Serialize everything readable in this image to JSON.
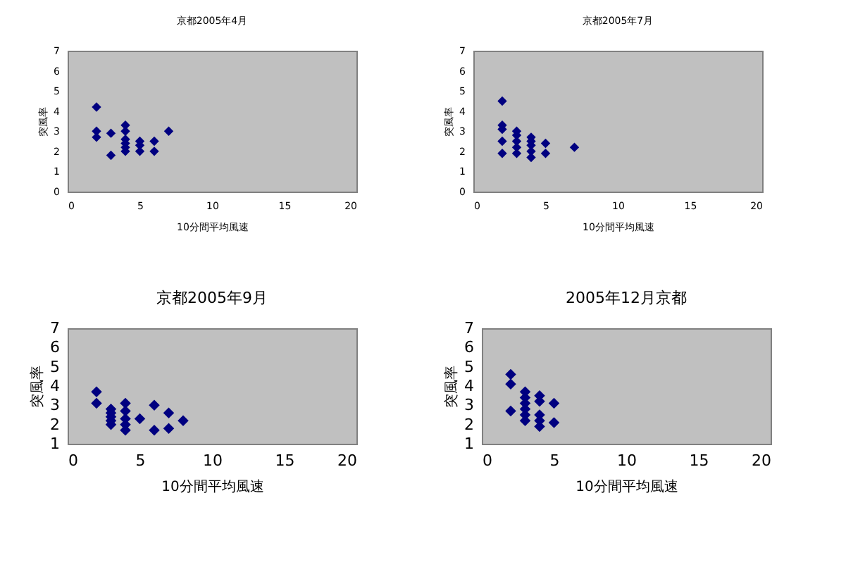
{
  "chart_data": [
    {
      "type": "scatter",
      "title": "京都2005年4月",
      "xlabel": "10分間平均風速",
      "ylabel": "突風率",
      "marker": "diamond",
      "grid": false,
      "xlim": [
        0,
        20
      ],
      "xticks": [
        0,
        5,
        10,
        15,
        20
      ],
      "ylim": [
        0,
        7
      ],
      "yticks": [
        0,
        1,
        2,
        3,
        4,
        5,
        6,
        7
      ],
      "series": [
        {
          "color": "#000080",
          "x": [
            2,
            2,
            2,
            3,
            3,
            4,
            4,
            4,
            4,
            4,
            4,
            5,
            5,
            5,
            6,
            6,
            7
          ],
          "values": [
            4.2,
            3.0,
            2.7,
            2.9,
            1.8,
            3.3,
            3.0,
            2.6,
            2.4,
            2.2,
            2.0,
            2.5,
            2.3,
            2.0,
            2.5,
            2.0,
            3.0
          ]
        }
      ]
    },
    {
      "type": "scatter",
      "title": "京都2005年7月",
      "xlabel": "10分間平均風速",
      "ylabel": "突風率",
      "marker": "diamond",
      "grid": false,
      "xlim": [
        0,
        20
      ],
      "xticks": [
        0,
        5,
        10,
        15,
        20
      ],
      "ylim": [
        0,
        7
      ],
      "yticks": [
        0,
        1,
        2,
        3,
        4,
        5,
        6,
        7
      ],
      "series": [
        {
          "color": "#000080",
          "x": [
            2,
            2,
            2,
            2,
            2,
            3,
            3,
            3,
            3,
            3,
            4,
            4,
            4,
            4,
            4,
            5,
            5,
            7
          ],
          "values": [
            4.5,
            3.3,
            3.1,
            2.5,
            1.9,
            3.0,
            2.8,
            2.5,
            2.2,
            1.9,
            2.7,
            2.5,
            2.3,
            2.0,
            1.7,
            2.4,
            1.9,
            2.2
          ]
        }
      ]
    },
    {
      "type": "scatter",
      "title": "京都2005年9月",
      "xlabel": "10分間平均風速",
      "ylabel": "突風率",
      "marker": "diamond",
      "grid": false,
      "xlim": [
        0,
        20
      ],
      "xticks": [
        0,
        5,
        10,
        15,
        20
      ],
      "ylim": [
        1,
        7
      ],
      "yticks": [
        1,
        2,
        3,
        4,
        5,
        6,
        7
      ],
      "series": [
        {
          "color": "#000080",
          "x": [
            2,
            2,
            3,
            3,
            3,
            3,
            3,
            4,
            4,
            4,
            4,
            4,
            5,
            6,
            6,
            7,
            7,
            8
          ],
          "values": [
            3.7,
            3.1,
            2.8,
            2.6,
            2.4,
            2.2,
            2.0,
            3.1,
            2.7,
            2.3,
            2.0,
            1.7,
            2.3,
            3.0,
            1.7,
            2.6,
            1.8,
            2.2
          ]
        }
      ]
    },
    {
      "type": "scatter",
      "title": "2005年12月京都",
      "xlabel": "10分間平均風速",
      "ylabel": "突風率",
      "marker": "diamond",
      "grid": false,
      "xlim": [
        0,
        20
      ],
      "xticks": [
        0,
        5,
        10,
        15,
        20
      ],
      "ylim": [
        1,
        7
      ],
      "yticks": [
        1,
        2,
        3,
        4,
        5,
        6,
        7
      ],
      "series": [
        {
          "color": "#000080",
          "x": [
            2,
            2,
            2,
            3,
            3,
            3,
            3,
            3,
            3,
            4,
            4,
            4,
            4,
            4,
            5,
            5
          ],
          "values": [
            4.6,
            4.1,
            2.7,
            3.7,
            3.4,
            3.1,
            2.8,
            2.5,
            2.2,
            3.5,
            3.2,
            2.5,
            2.2,
            1.9,
            3.1,
            2.1
          ]
        }
      ]
    }
  ]
}
